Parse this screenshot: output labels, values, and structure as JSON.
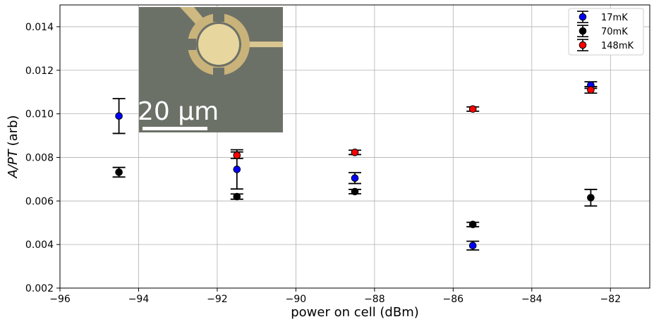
{
  "chart_data": {
    "type": "scatter",
    "xlabel": "power on cell (dBm)",
    "ylabel_italic": "A/PT",
    "ylabel_unit": "(arb)",
    "xlim": [
      -96,
      -81
    ],
    "ylim": [
      0.002,
      0.015
    ],
    "x_ticks": [
      -96,
      -94,
      -92,
      -90,
      -88,
      -86,
      -84,
      -82
    ],
    "x_tick_labels": [
      "−96",
      "−94",
      "−92",
      "−90",
      "−88",
      "−86",
      "−84",
      "−82"
    ],
    "y_ticks": [
      0.002,
      0.004,
      0.006,
      0.008,
      0.01,
      0.012,
      0.014
    ],
    "y_tick_labels": [
      "0.002",
      "0.004",
      "0.006",
      "0.008",
      "0.010",
      "0.012",
      "0.014"
    ],
    "grid": true,
    "legend_position": "top-right",
    "series": [
      {
        "name": "17mK",
        "color": "#0000ff",
        "points": [
          {
            "x": -94.5,
            "y": 0.0099,
            "err": 0.0008
          },
          {
            "x": -91.5,
            "y": 0.00745,
            "err": 0.0009
          },
          {
            "x": -88.5,
            "y": 0.00705,
            "err": 0.00025
          },
          {
            "x": -85.5,
            "y": 0.00395,
            "err": 0.0002
          },
          {
            "x": -82.5,
            "y": 0.01132,
            "err": 0.00015
          }
        ]
      },
      {
        "name": "70mK",
        "color": "#000000",
        "points": [
          {
            "x": -94.5,
            "y": 0.00732,
            "err": 0.00022
          },
          {
            "x": -91.5,
            "y": 0.0062,
            "err": 0.00012
          },
          {
            "x": -88.5,
            "y": 0.00643,
            "err": 0.0001
          },
          {
            "x": -85.5,
            "y": 0.00492,
            "err": 0.0001
          },
          {
            "x": -82.5,
            "y": 0.00615,
            "err": 0.00038
          }
        ]
      },
      {
        "name": "148mK",
        "color": "#ff0000",
        "points": [
          {
            "x": -91.5,
            "y": 0.0081,
            "err": 0.00015
          },
          {
            "x": -88.5,
            "y": 0.00823,
            "err": 0.0001
          },
          {
            "x": -85.5,
            "y": 0.01022,
            "err": 0.0001
          },
          {
            "x": -82.5,
            "y": 0.0111,
            "err": 0.00015
          }
        ]
      }
    ]
  },
  "inset": {
    "scale_label": "20 μm"
  }
}
